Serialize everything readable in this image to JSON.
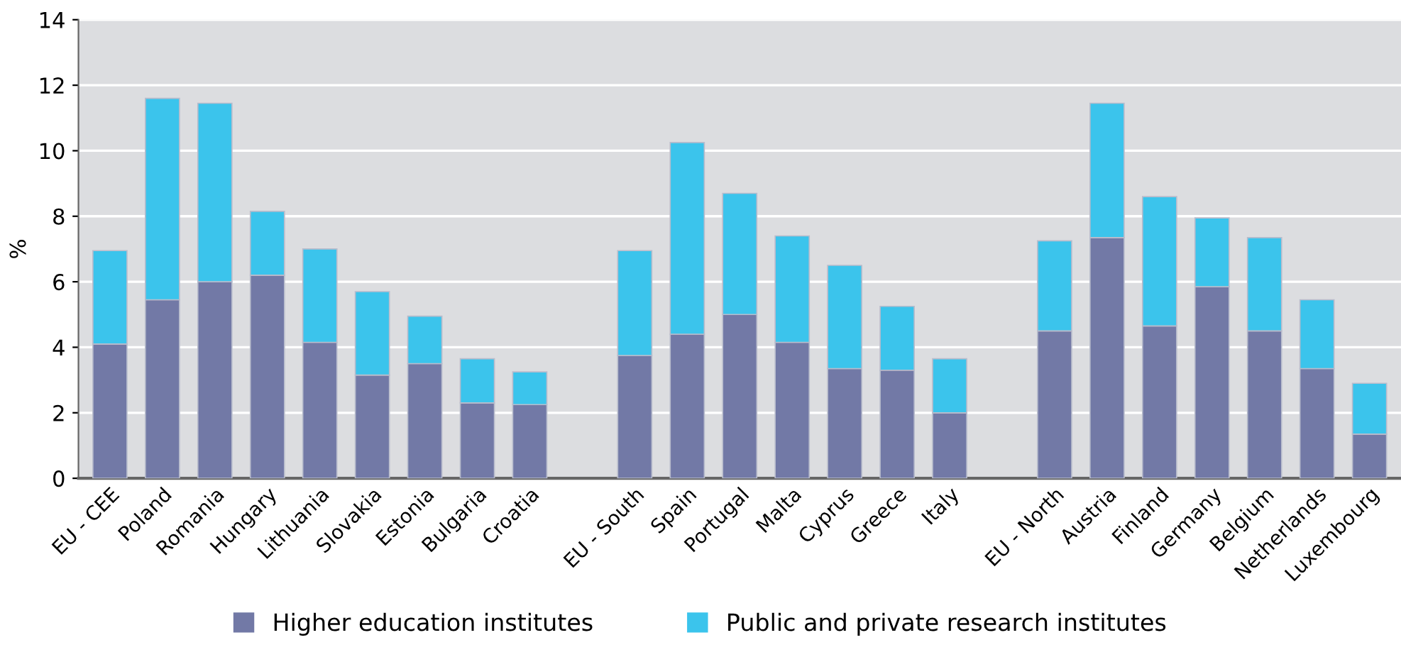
{
  "chart_data": {
    "type": "bar",
    "stacked": true,
    "ylabel": "%",
    "categories": [
      "EU - CEE",
      "Poland",
      "Romania",
      "Hungary",
      "Lithuania",
      "Slovakia",
      "Estonia",
      "Bulgaria",
      "Croatia",
      null,
      "EU - South",
      "Spain",
      "Portugal",
      "Malta",
      "Cyprus",
      "Greece",
      "Italy",
      null,
      "EU - North",
      "Austria",
      "Finland",
      "Germany",
      "Belgium",
      "Netherlands",
      "Luxembourg"
    ],
    "series": [
      {
        "name": "Higher education institutes",
        "color": "#7279a6",
        "values": [
          4.1,
          5.45,
          6.0,
          6.2,
          4.15,
          3.15,
          3.5,
          2.3,
          2.25,
          null,
          3.75,
          4.4,
          5.0,
          4.15,
          3.35,
          3.3,
          2.0,
          null,
          4.5,
          7.35,
          4.65,
          5.85,
          4.5,
          3.35,
          1.35
        ]
      },
      {
        "name": "Public and private research institutes",
        "color": "#3bc4ec",
        "values": [
          2.85,
          6.15,
          5.45,
          1.95,
          2.85,
          2.55,
          1.45,
          1.35,
          1.0,
          null,
          3.2,
          5.85,
          3.7,
          3.25,
          3.15,
          1.95,
          1.65,
          null,
          2.75,
          4.1,
          3.95,
          2.1,
          2.85,
          2.1,
          1.55
        ]
      }
    ],
    "ylim": [
      0,
      14
    ],
    "yticks": [
      0,
      2,
      4,
      6,
      8,
      10,
      12,
      14
    ],
    "grid": "y",
    "legend": "bottom"
  }
}
